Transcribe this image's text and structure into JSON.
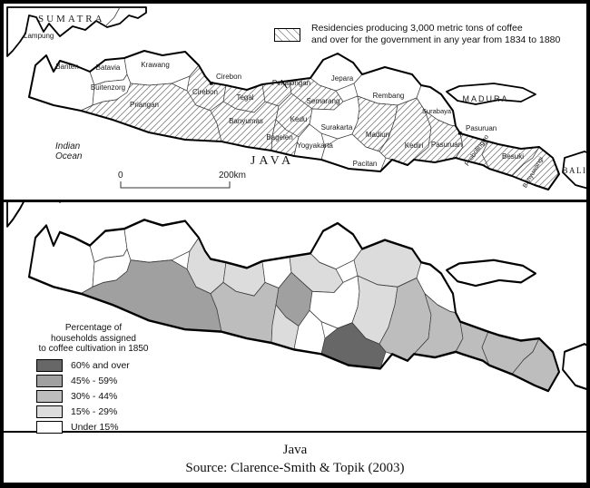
{
  "colors": {
    "over60": "#676767",
    "s45_59": "#a0a0a0",
    "s30_44": "#bdbdbd",
    "s15_29": "#dcdcdc",
    "under15": "#ffffff",
    "coast": "#000000",
    "border": "#3c3c3c",
    "hatch_line": "#808080"
  },
  "regions": [
    {
      "id": "banten",
      "name": "Banten",
      "hatched": false,
      "shade": "under15"
    },
    {
      "id": "batavia",
      "name": "Batavia",
      "hatched": false,
      "shade": "under15"
    },
    {
      "id": "buitenzorg",
      "name": "Buitenzorg",
      "hatched": false,
      "shade": "under15"
    },
    {
      "id": "krawang",
      "name": "Krawang",
      "hatched": false,
      "shade": "under15"
    },
    {
      "id": "cirebon",
      "name": "Cirebon",
      "hatched": true,
      "shade": "s15_29"
    },
    {
      "id": "priangan",
      "name": "Priangan",
      "hatched": true,
      "shade": "s45_59"
    },
    {
      "id": "tegal",
      "name": "Tegal",
      "hatched": true,
      "shade": "s15_29"
    },
    {
      "id": "pekalongan",
      "name": "Pekalongan",
      "hatched": true,
      "shade": "under15"
    },
    {
      "id": "semarang",
      "name": "Semarang",
      "hatched": true,
      "shade": "s15_29"
    },
    {
      "id": "jepara",
      "name": "Jepara",
      "hatched": false,
      "shade": "under15"
    },
    {
      "id": "rembang",
      "name": "Rembang",
      "hatched": false,
      "shade": "s15_29"
    },
    {
      "id": "surabaya",
      "name": "Surabaya",
      "hatched": false,
      "shade": "under15"
    },
    {
      "id": "banyumas",
      "name": "Banyumas",
      "hatched": true,
      "shade": "s30_44"
    },
    {
      "id": "kedu",
      "name": "Kedu",
      "hatched": true,
      "shade": "s45_59"
    },
    {
      "id": "bagelen",
      "name": "Bagelen",
      "hatched": true,
      "shade": "s15_29"
    },
    {
      "id": "yogyakarta",
      "name": "Yogyakarta",
      "hatched": false,
      "shade": "under15"
    },
    {
      "id": "surakarta",
      "name": "Surakarta",
      "hatched": false,
      "shade": "under15"
    },
    {
      "id": "madiun",
      "name": "Madiun",
      "hatched": true,
      "shade": "s15_29"
    },
    {
      "id": "pacitan",
      "name": "Pacitan",
      "hatched": false,
      "shade": "over60"
    },
    {
      "id": "kediri",
      "name": "Kediri",
      "hatched": true,
      "shade": "s30_44"
    },
    {
      "id": "pasuruan",
      "name": "Pasuruan",
      "hatched": true,
      "shade": "s30_44"
    },
    {
      "id": "probolinggo",
      "name": "Probolinggo",
      "hatched": true,
      "shade": "s30_44"
    },
    {
      "id": "besuki",
      "name": "Besuki",
      "hatched": true,
      "shade": "s30_44"
    },
    {
      "id": "banyuwangi",
      "name": "Banyuwangi",
      "hatched": true,
      "shade": "s30_44"
    }
  ],
  "top_map": {
    "legend": {
      "line1": "Residencies producing 3,000 metric tons of coffee",
      "line2": "and over for the government in any year from 1834 to 1880"
    },
    "labels": {
      "sumatra": "SUMATRA",
      "lampung": "Lampung",
      "java": "JAVA",
      "madura": "MADURA",
      "bali": "BALI",
      "ocean_line1": "Indian",
      "ocean_line2": "Ocean"
    },
    "towns": [
      {
        "id": "cirebon_town",
        "label": "Cirebon"
      },
      {
        "id": "pasuruan_town",
        "label": "Pasuruan"
      }
    ],
    "scale": {
      "start": "0",
      "end": "200km"
    }
  },
  "bottom_map": {
    "legend_title": [
      "Percentage of",
      "households assigned",
      "to coffee cultivation in 1850"
    ],
    "legend_items": [
      {
        "label": "60% and over",
        "shade": "over60"
      },
      {
        "label": "45% - 59%",
        "shade": "s45_59"
      },
      {
        "label": "30% - 44%",
        "shade": "s30_44"
      },
      {
        "label": "15% - 29%",
        "shade": "s15_29"
      },
      {
        "label": "Under 15%",
        "shade": "under15"
      }
    ]
  },
  "caption": {
    "island_label": "Java",
    "source": "Source: Clarence-Smith & Topik (2003)"
  }
}
